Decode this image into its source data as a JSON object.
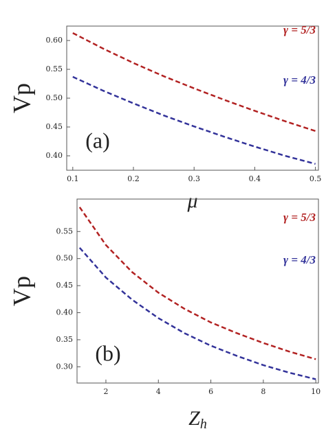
{
  "chart_data": [
    {
      "type": "line",
      "annotation": "(a)",
      "ylabel": "Vp",
      "xlabel": "μ",
      "x": [
        0.1,
        0.15,
        0.2,
        0.25,
        0.3,
        0.35,
        0.4,
        0.45,
        0.5
      ],
      "series": [
        {
          "name": "γ = 5/3",
          "color": "#b22222",
          "values": [
            0.613,
            0.586,
            0.561,
            0.538,
            0.517,
            0.497,
            0.478,
            0.46,
            0.443
          ]
        },
        {
          "name": "γ = 4/3",
          "color": "#33339a",
          "values": [
            0.537,
            0.513,
            0.491,
            0.47,
            0.451,
            0.433,
            0.416,
            0.4,
            0.386
          ]
        }
      ],
      "xlim": [
        0.09,
        0.505
      ],
      "ylim": [
        0.375,
        0.625
      ],
      "xticks": [
        0.1,
        0.2,
        0.3,
        0.4,
        0.5
      ],
      "yticks": [
        {
          "value": 0.4,
          "label": "0.40"
        },
        0.45,
        {
          "value": 0.5,
          "label": "0.50"
        },
        0.55,
        {
          "value": 0.6,
          "label": "0.60"
        }
      ]
    },
    {
      "type": "line",
      "annotation": "(b)",
      "ylabel": "Vp",
      "xlabel": "Z",
      "xlabel_subscript": "h",
      "x": [
        1,
        2,
        3,
        4,
        5,
        6,
        7,
        8,
        9,
        10
      ],
      "series": [
        {
          "name": "γ = 5/3",
          "color": "#b22222",
          "values": [
            0.595,
            0.525,
            0.475,
            0.437,
            0.407,
            0.382,
            0.362,
            0.344,
            0.328,
            0.314
          ]
        },
        {
          "name": "γ = 4/3",
          "color": "#33339a",
          "values": [
            0.52,
            0.465,
            0.424,
            0.39,
            0.362,
            0.339,
            0.32,
            0.303,
            0.289,
            0.277
          ]
        }
      ],
      "xlim": [
        0.9,
        10.1
      ],
      "ylim": [
        0.27,
        0.61
      ],
      "xticks": [
        2,
        4,
        6,
        8,
        10
      ],
      "yticks": [
        {
          "value": 0.3,
          "label": "0.30"
        },
        0.35,
        {
          "value": 0.4,
          "label": "0.40"
        },
        0.45,
        {
          "value": 0.5,
          "label": "0.50"
        },
        0.55
      ]
    }
  ]
}
